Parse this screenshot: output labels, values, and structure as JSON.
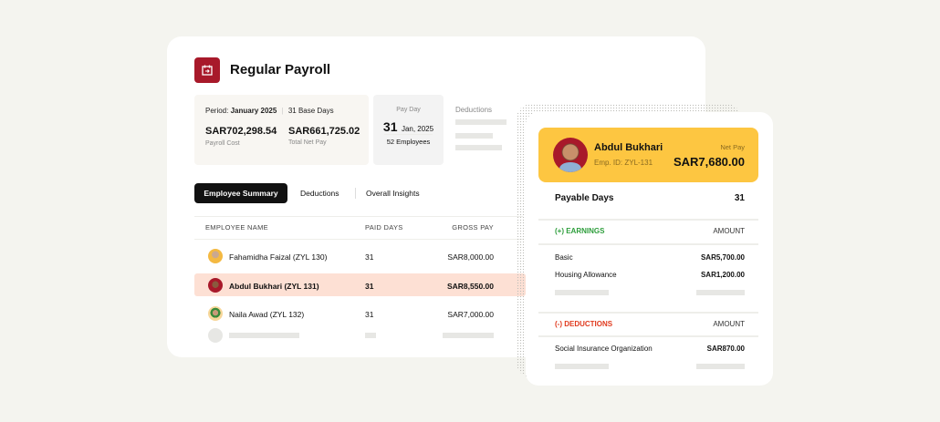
{
  "header": {
    "title": "Regular Payroll",
    "icon": "calendar-arrow-icon",
    "icon_color": "#a8192a"
  },
  "summary": {
    "period_label": "Period:",
    "period": "January 2025",
    "base_days": "31 Base Days",
    "payroll_cost": "SAR702,298.54",
    "payroll_cost_label": "Payroll Cost",
    "net_pay": "SAR661,725.02",
    "net_pay_label": "Total Net Pay"
  },
  "payday": {
    "label": "Pay Day",
    "day": "31",
    "month": "Jan, 2025",
    "employees": "52 Employees"
  },
  "deductions": {
    "label": "Deductions"
  },
  "tabs": [
    {
      "label": "Employee Summary",
      "active": true
    },
    {
      "label": "Deductions"
    },
    {
      "label": "Overall Insights"
    }
  ],
  "table": {
    "columns": [
      "EMPLOYEE NAME",
      "PAID DAYS",
      "GROSS PAY"
    ],
    "rows": [
      {
        "name": "Fahamidha Faizal (ZYL 130)",
        "days": "31",
        "gross": "SAR8,000.00"
      },
      {
        "name": "Abdul Bukhari (ZYL 131)",
        "days": "31",
        "gross": "SAR8,550.00",
        "selected": true
      },
      {
        "name": "Naila Awad (ZYL 132)",
        "days": "31",
        "gross": "SAR7,000.00"
      }
    ]
  },
  "detail": {
    "name": "Abdul Bukhari",
    "emp_id": "Emp. ID: ZYL-131",
    "net_pay_label": "Net Pay",
    "net_pay": "SAR7,680.00",
    "payable_days_label": "Payable Days",
    "payable_days": "31",
    "earnings_label": "(+) EARNINGS",
    "amount_label": "AMOUNT",
    "earnings": [
      {
        "label": "Basic",
        "amount": "SAR5,700.00"
      },
      {
        "label": "Housing Allowance",
        "amount": "SAR1,200.00"
      }
    ],
    "deductions_label": "(-) DEDUCTIONS",
    "deductions": [
      {
        "label": "Social Insurance Organization",
        "amount": "SAR870.00"
      }
    ],
    "colors": {
      "header": "#fdc641",
      "earnings": "#2e9e3c",
      "deductions": "#e03a1e"
    }
  }
}
